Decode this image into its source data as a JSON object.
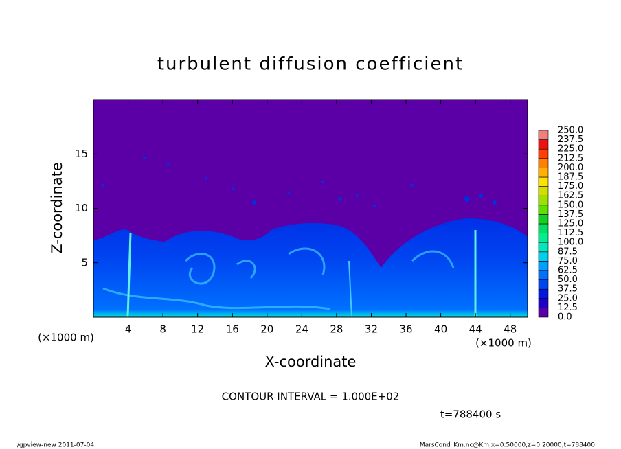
{
  "chart_data": {
    "type": "heatmap",
    "title": "turbulent diffusion coefficient",
    "xlabel": "X-coordinate",
    "ylabel": "Z-coordinate",
    "x_unit_left": "(×1000 m)",
    "x_unit_right": "(×1000 m)",
    "xlim": [
      0,
      50
    ],
    "ylim": [
      0,
      20
    ],
    "xticks": [
      4,
      8,
      12,
      16,
      20,
      24,
      28,
      32,
      36,
      40,
      44,
      48
    ],
    "yticks": [
      5,
      10,
      15
    ],
    "levels": [
      {
        "value": 0,
        "label": "0.0"
      },
      {
        "value": 12.5,
        "label": "12.5"
      },
      {
        "value": 25,
        "label": "25.0"
      },
      {
        "value": 37.5,
        "label": "37.5"
      },
      {
        "value": 50,
        "label": "50.0"
      },
      {
        "value": 62.5,
        "label": "62.5"
      },
      {
        "value": 75,
        "label": "75.0"
      },
      {
        "value": 87.5,
        "label": "87.5"
      },
      {
        "value": 100,
        "label": "100.0"
      },
      {
        "value": 112.5,
        "label": "112.5"
      },
      {
        "value": 125,
        "label": "125.0"
      },
      {
        "value": 137.5,
        "label": "137.5"
      },
      {
        "value": 150,
        "label": "150.0"
      },
      {
        "value": 162.5,
        "label": "162.5"
      },
      {
        "value": 175,
        "label": "175.0"
      },
      {
        "value": 187.5,
        "label": "187.5"
      },
      {
        "value": 200,
        "label": "200.0"
      },
      {
        "value": 212.5,
        "label": "212.5"
      },
      {
        "value": 225,
        "label": "225.0"
      },
      {
        "value": 237.5,
        "label": "237.5"
      },
      {
        "value": 250,
        "label": "250.0"
      }
    ],
    "colors": [
      "#5a00a6",
      "#2000c8",
      "#0018e0",
      "#0044f0",
      "#0070ff",
      "#00a0ff",
      "#00d0f0",
      "#00e8c0",
      "#00f090",
      "#00e060",
      "#10d020",
      "#60e000",
      "#a0e000",
      "#d0e000",
      "#ffe000",
      "#ffb000",
      "#ff8000",
      "#ff4000",
      "#f01010",
      "#f08080"
    ],
    "annotation": "CONTOUR INTERVAL = 1.000E+02",
    "time_label": "t=788400 s",
    "footer_left": "./gpview-new  2011-07-04",
    "footer_right": "MarsCond_Km.nc@Km,x=0:50000,z=0:20000,t=788400"
  }
}
